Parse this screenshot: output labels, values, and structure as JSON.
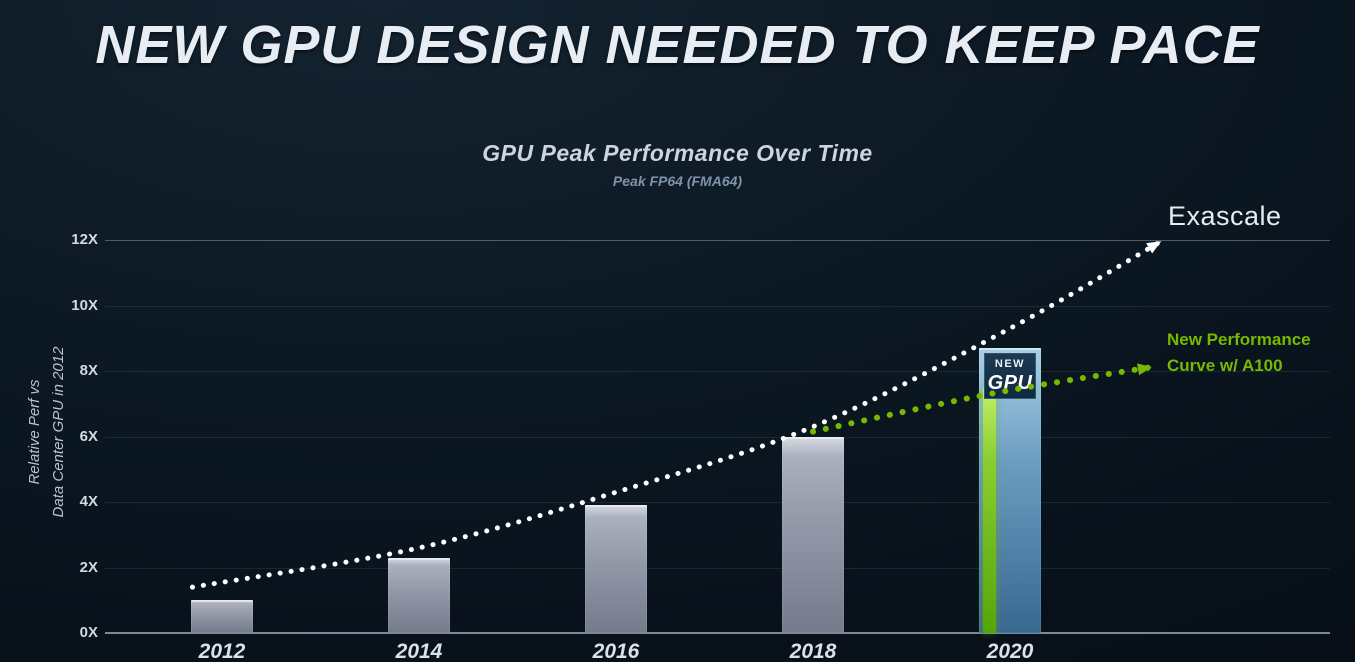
{
  "slide": {
    "title": "NEW GPU DESIGN NEEDED TO KEEP PACE"
  },
  "chart": {
    "title": "GPU Peak Performance Over Time",
    "subtitle": "Peak FP64 (FMA64)",
    "y_axis_title_line1": "Relative Perf vs",
    "y_axis_title_line2": "Data Center GPU in 2012",
    "annotations": {
      "exascale_label": "Exascale",
      "new_curve_label_line1": "New Performance",
      "new_curve_label_line2": "Curve w/ A100",
      "new_gpu_line1": "NEW",
      "new_gpu_line2": "GPU"
    },
    "colors": {
      "background": "#0b1722",
      "accent_green": "#76b900",
      "bar_gray": "#9aa0ae",
      "bar_blue": "#5b8fb7",
      "trend_white": "#ffffff",
      "text_light": "#e6ebef"
    }
  },
  "chart_data": {
    "type": "bar",
    "title": "GPU Peak Performance Over Time",
    "subtitle": "Peak FP64 (FMA64)",
    "xlabel": "",
    "ylabel": "Relative Perf vs Data Center GPU in 2012",
    "categories": [
      "2012",
      "2014",
      "2016",
      "2018",
      "2020"
    ],
    "series": [
      {
        "name": "Data Center GPU",
        "type": "bar",
        "color": "#9aa0ae",
        "values": [
          1.0,
          2.3,
          3.9,
          6.0,
          null
        ]
      },
      {
        "name": "New GPU",
        "type": "bar",
        "color": "#5b8fb7",
        "values": [
          null,
          null,
          null,
          null,
          8.7
        ]
      },
      {
        "name": "A100",
        "type": "bar",
        "color": "#76b900",
        "values": [
          null,
          null,
          null,
          null,
          7.5
        ]
      }
    ],
    "trend_lines": [
      {
        "name": "Exascale",
        "style": "dotted",
        "color": "#ffffff",
        "arrow": true,
        "x": [
          2011.7,
          2014,
          2016,
          2018,
          2020,
          2021.5
        ],
        "y": [
          1.4,
          2.6,
          4.3,
          6.3,
          9.3,
          11.9
        ]
      },
      {
        "name": "New Performance Curve w/ A100",
        "style": "dotted",
        "color": "#76b900",
        "arrow": true,
        "x": [
          2018,
          2019.8,
          2021.4
        ],
        "y": [
          6.15,
          7.3,
          8.1
        ]
      }
    ],
    "yticks": [
      "0X",
      "2X",
      "4X",
      "6X",
      "8X",
      "10X",
      "12X"
    ],
    "ylim": [
      0,
      12
    ],
    "grid": true,
    "legend_position": "none"
  }
}
